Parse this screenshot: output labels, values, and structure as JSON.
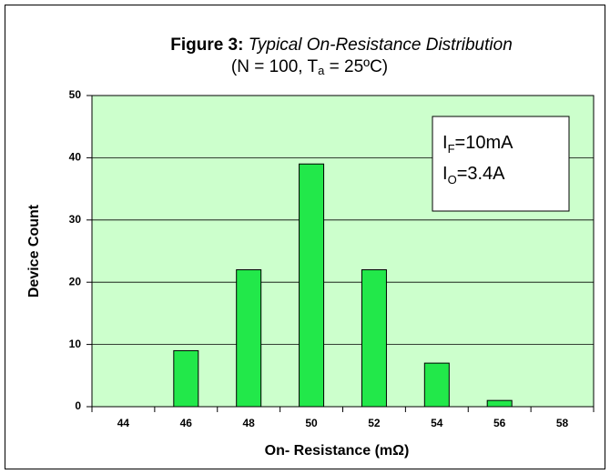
{
  "chart_data": {
    "type": "bar",
    "title_label": "Figure 3:",
    "title": "Typical On-Resistance Distribution",
    "subtitle": [
      "(N = 100, T",
      "a",
      " = 25ºC)"
    ],
    "annotations": [
      [
        "I",
        "F",
        "=10mA"
      ],
      [
        "I",
        "O",
        "=3.4A"
      ]
    ],
    "x_label": "On- Resistance (mΩ)",
    "y_label": "Device Count",
    "categories": [
      "44",
      "46",
      "48",
      "50",
      "52",
      "54",
      "56",
      "58"
    ],
    "values": [
      0,
      9,
      22,
      39,
      22,
      7,
      1,
      0
    ],
    "color": "#22e84a",
    "ylim": [
      0,
      50
    ],
    "yticks": [
      0,
      10,
      20,
      30,
      40,
      50
    ],
    "grid": true
  }
}
